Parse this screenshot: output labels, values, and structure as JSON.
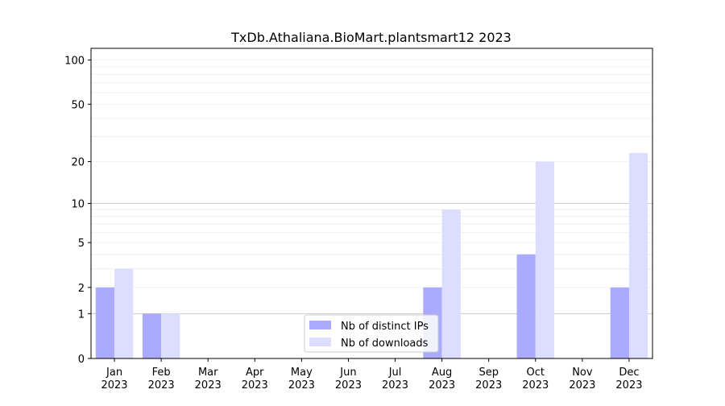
{
  "chart_data": {
    "type": "bar",
    "title": "TxDb.Athaliana.BioMart.plantsmart12 2023",
    "xlabel": "",
    "ylabel": "",
    "y_scale": "log(1+y)",
    "ylim": [
      0,
      120
    ],
    "y_ticks": [
      0,
      1,
      2,
      5,
      10,
      20,
      50,
      100
    ],
    "categories": [
      {
        "month": "Jan",
        "year": "2023"
      },
      {
        "month": "Feb",
        "year": "2023"
      },
      {
        "month": "Mar",
        "year": "2023"
      },
      {
        "month": "Apr",
        "year": "2023"
      },
      {
        "month": "May",
        "year": "2023"
      },
      {
        "month": "Jun",
        "year": "2023"
      },
      {
        "month": "Jul",
        "year": "2023"
      },
      {
        "month": "Aug",
        "year": "2023"
      },
      {
        "month": "Sep",
        "year": "2023"
      },
      {
        "month": "Oct",
        "year": "2023"
      },
      {
        "month": "Nov",
        "year": "2023"
      },
      {
        "month": "Dec",
        "year": "2023"
      }
    ],
    "series": [
      {
        "name": "Nb of distinct IPs",
        "color": "#aaaaff",
        "values": [
          2,
          1,
          0,
          0,
          0,
          0,
          0,
          2,
          0,
          4,
          0,
          2
        ]
      },
      {
        "name": "Nb of downloads",
        "color": "#ddddff",
        "values": [
          3,
          1,
          0,
          0,
          0,
          0,
          0,
          9,
          0,
          20,
          0,
          23
        ]
      }
    ],
    "legend_position": "lower-center",
    "grid": true
  }
}
